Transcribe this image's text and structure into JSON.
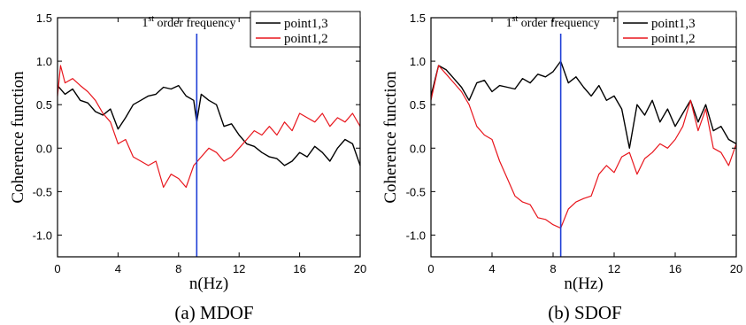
{
  "chart_data": [
    {
      "type": "line",
      "caption": "(a) MDOF",
      "xlabel": "n(Hz)",
      "ylabel": "Coherence function",
      "xlim": [
        0,
        20
      ],
      "ylim": [
        -1.25,
        1.5
      ],
      "xticks": [
        0,
        4,
        8,
        12,
        16,
        20
      ],
      "yticks": [
        -1.0,
        -0.5,
        0.0,
        0.5,
        1.0,
        1.5
      ],
      "ytick_labels": [
        "-1.0",
        "-0.5",
        "0.0",
        "0.5",
        "1.0",
        "1.5"
      ],
      "xtick_labels": [
        "0",
        "4",
        "8",
        "12",
        "16",
        "20"
      ],
      "grid": false,
      "legend_position": "top-right",
      "annotation": {
        "text": "1st order frequency",
        "base": "1",
        "sup": "st",
        "rest": " order frequency",
        "x": 9.2,
        "line_color": "#1f3fd6"
      },
      "series": [
        {
          "name": "point1,3",
          "color": "#000000",
          "x": [
            0,
            0.5,
            1,
            1.5,
            2,
            2.5,
            3,
            3.5,
            4,
            4.5,
            5,
            5.5,
            6,
            6.5,
            7,
            7.5,
            8,
            8.5,
            9,
            9.2,
            9.5,
            10,
            10.5,
            11,
            11.5,
            12,
            12.5,
            13,
            13.5,
            14,
            14.5,
            15,
            15.5,
            16,
            16.5,
            17,
            17.5,
            18,
            18.5,
            19,
            19.5,
            20
          ],
          "y": [
            0.72,
            0.62,
            0.68,
            0.55,
            0.52,
            0.42,
            0.38,
            0.45,
            0.22,
            0.35,
            0.5,
            0.55,
            0.6,
            0.62,
            0.7,
            0.68,
            0.72,
            0.6,
            0.55,
            0.3,
            0.62,
            0.55,
            0.5,
            0.25,
            0.28,
            0.15,
            0.05,
            0.02,
            -0.05,
            -0.1,
            -0.12,
            -0.2,
            -0.15,
            -0.05,
            -0.1,
            0.02,
            -0.05,
            -0.15,
            0.0,
            0.1,
            0.05,
            -0.2
          ]
        },
        {
          "name": "point1,2",
          "color": "#e8161d",
          "x": [
            0,
            0.2,
            0.5,
            1,
            1.5,
            2,
            2.5,
            3,
            3.5,
            4,
            4.5,
            5,
            5.5,
            6,
            6.5,
            7,
            7.5,
            8,
            8.5,
            9,
            9.5,
            10,
            10.5,
            11,
            11.5,
            12,
            12.5,
            13,
            13.5,
            14,
            14.5,
            15,
            15.5,
            16,
            16.5,
            17,
            17.5,
            18,
            18.5,
            19,
            19.5,
            20
          ],
          "y": [
            0.6,
            0.95,
            0.75,
            0.8,
            0.72,
            0.65,
            0.55,
            0.4,
            0.3,
            0.05,
            0.1,
            -0.1,
            -0.15,
            -0.2,
            -0.15,
            -0.45,
            -0.3,
            -0.35,
            -0.45,
            -0.2,
            -0.1,
            0.0,
            -0.05,
            -0.15,
            -0.1,
            0.0,
            0.1,
            0.2,
            0.15,
            0.25,
            0.15,
            0.3,
            0.2,
            0.4,
            0.35,
            0.3,
            0.4,
            0.25,
            0.35,
            0.3,
            0.4,
            0.25
          ]
        }
      ]
    },
    {
      "type": "line",
      "caption": "(b) SDOF",
      "xlabel": "n(Hz)",
      "ylabel": "Coherence function",
      "xlim": [
        0,
        20
      ],
      "ylim": [
        -1.25,
        1.5
      ],
      "xticks": [
        0,
        4,
        8,
        12,
        16,
        20
      ],
      "yticks": [
        -1.0,
        -0.5,
        0.0,
        0.5,
        1.0,
        1.5
      ],
      "ytick_labels": [
        "-1.0",
        "-0.5",
        "0.0",
        "0.5",
        "1.0",
        "1.5"
      ],
      "xtick_labels": [
        "0",
        "4",
        "8",
        "12",
        "16",
        "20"
      ],
      "grid": false,
      "legend_position": "top-right",
      "annotation": {
        "text": "1st order frequency",
        "base": "1",
        "sup": "st",
        "rest": " order frequency",
        "x": 8.5,
        "line_color": "#1f3fd6"
      },
      "series": [
        {
          "name": "point1,3",
          "color": "#000000",
          "x": [
            0,
            0.5,
            1,
            1.5,
            2,
            2.5,
            3,
            3.5,
            4,
            4.5,
            5,
            5.5,
            6,
            6.5,
            7,
            7.5,
            8,
            8.5,
            9,
            9.5,
            10,
            10.5,
            11,
            11.5,
            12,
            12.5,
            13,
            13.5,
            14,
            14.5,
            15,
            15.5,
            16,
            16.5,
            17,
            17.5,
            18,
            18.5,
            19,
            19.5,
            20
          ],
          "y": [
            0.6,
            0.95,
            0.9,
            0.8,
            0.7,
            0.55,
            0.75,
            0.78,
            0.65,
            0.72,
            0.7,
            0.68,
            0.8,
            0.75,
            0.85,
            0.82,
            0.88,
            1.0,
            0.75,
            0.82,
            0.7,
            0.6,
            0.72,
            0.55,
            0.6,
            0.45,
            0.0,
            0.5,
            0.38,
            0.55,
            0.3,
            0.45,
            0.25,
            0.4,
            0.55,
            0.3,
            0.5,
            0.2,
            0.25,
            0.1,
            0.05
          ]
        },
        {
          "name": "point1,2",
          "color": "#e8161d",
          "x": [
            0,
            0.5,
            1,
            1.5,
            2,
            2.5,
            3,
            3.5,
            4,
            4.5,
            5,
            5.5,
            6,
            6.5,
            7,
            7.5,
            8,
            8.5,
            9,
            9.5,
            10,
            10.5,
            11,
            11.5,
            12,
            12.5,
            13,
            13.5,
            14,
            14.5,
            15,
            15.5,
            16,
            16.5,
            17,
            17.5,
            18,
            18.5,
            19,
            19.5,
            20
          ],
          "y": [
            0.55,
            0.95,
            0.85,
            0.75,
            0.65,
            0.5,
            0.25,
            0.15,
            0.1,
            -0.15,
            -0.35,
            -0.55,
            -0.62,
            -0.65,
            -0.8,
            -0.82,
            -0.88,
            -0.92,
            -0.7,
            -0.62,
            -0.58,
            -0.55,
            -0.3,
            -0.2,
            -0.28,
            -0.1,
            -0.05,
            -0.3,
            -0.12,
            -0.05,
            0.05,
            0.0,
            0.1,
            0.25,
            0.55,
            0.2,
            0.45,
            0.0,
            -0.05,
            -0.2,
            0.05
          ]
        }
      ]
    }
  ]
}
